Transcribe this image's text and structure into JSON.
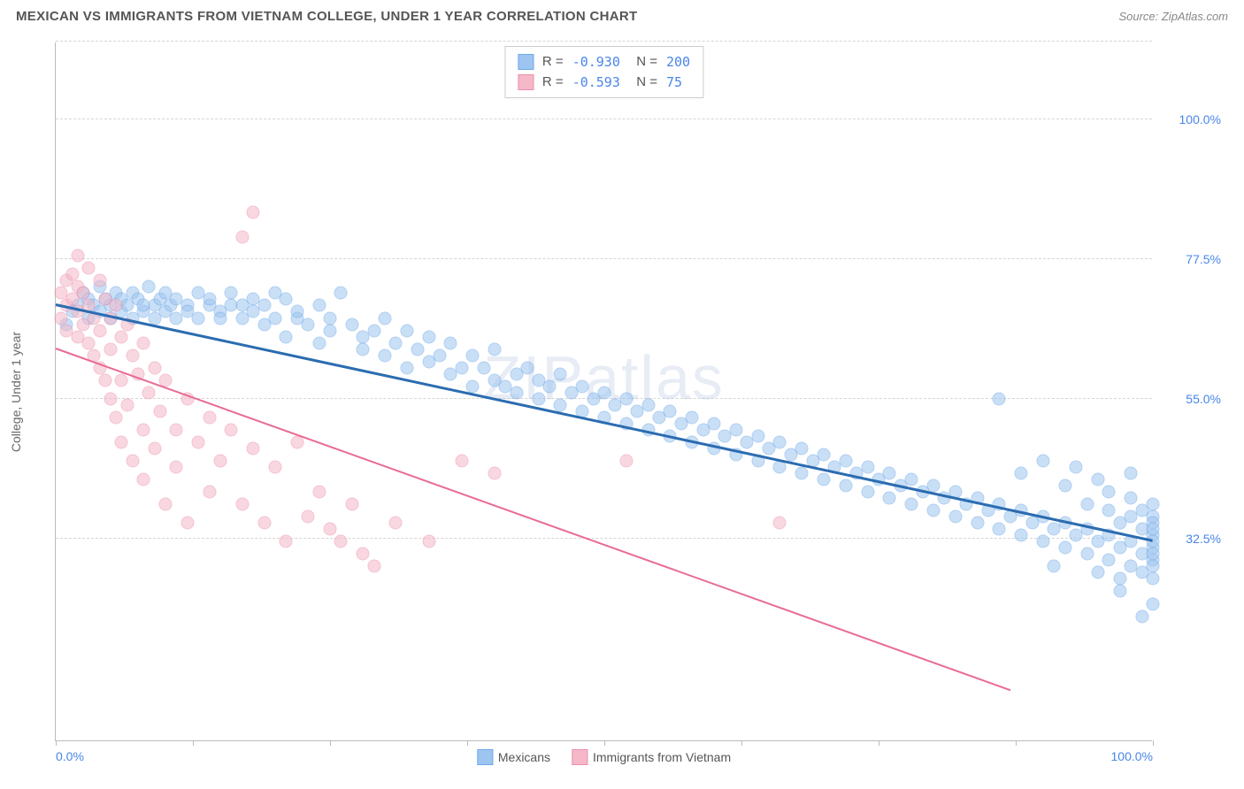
{
  "title": "MEXICAN VS IMMIGRANTS FROM VIETNAM COLLEGE, UNDER 1 YEAR CORRELATION CHART",
  "source": "Source: ZipAtlas.com",
  "watermark": "ZIPatlas",
  "y_axis_label": "College, Under 1 year",
  "chart": {
    "type": "scatter",
    "xlim": [
      0,
      100
    ],
    "ylim": [
      0,
      112.5
    ],
    "x_ticks": [
      0,
      12.5,
      25,
      37.5,
      50,
      62.5,
      75,
      87.5,
      100
    ],
    "x_tick_labels": {
      "0": "0.0%",
      "100": "100.0%"
    },
    "y_gridlines": [
      32.5,
      55,
      77.5,
      100,
      112.5
    ],
    "y_tick_labels": {
      "32.5": "32.5%",
      "55": "55.0%",
      "77.5": "77.5%",
      "100": "100.0%"
    },
    "background_color": "#ffffff",
    "grid_color": "#d5d5d5",
    "point_radius": 7.5,
    "point_opacity": 0.55,
    "series": [
      {
        "name": "Mexicans",
        "color": "#9ec5f0",
        "stroke": "#6fa8e8",
        "r_value": "-0.930",
        "n_value": "200",
        "trend": {
          "x1": 0,
          "y1": 70,
          "x2": 100,
          "y2": 32,
          "color": "#2b6cb0",
          "width": 2.5
        },
        "points": [
          [
            1,
            67
          ],
          [
            1.5,
            69
          ],
          [
            2,
            70
          ],
          [
            2.5,
            72
          ],
          [
            3,
            68
          ],
          [
            3,
            71
          ],
          [
            3.5,
            70
          ],
          [
            4,
            69
          ],
          [
            4,
            73
          ],
          [
            4.5,
            71
          ],
          [
            5,
            70
          ],
          [
            5,
            68
          ],
          [
            5.5,
            72
          ],
          [
            6,
            69
          ],
          [
            6,
            71
          ],
          [
            6.5,
            70
          ],
          [
            7,
            68
          ],
          [
            7,
            72
          ],
          [
            7.5,
            71
          ],
          [
            8,
            69
          ],
          [
            8,
            70
          ],
          [
            8.5,
            73
          ],
          [
            9,
            68
          ],
          [
            9,
            70
          ],
          [
            9.5,
            71
          ],
          [
            10,
            69
          ],
          [
            10,
            72
          ],
          [
            10.5,
            70
          ],
          [
            11,
            68
          ],
          [
            11,
            71
          ],
          [
            12,
            70
          ],
          [
            12,
            69
          ],
          [
            13,
            72
          ],
          [
            13,
            68
          ],
          [
            14,
            70
          ],
          [
            14,
            71
          ],
          [
            15,
            69
          ],
          [
            15,
            68
          ],
          [
            16,
            70
          ],
          [
            16,
            72
          ],
          [
            17,
            68
          ],
          [
            17,
            70
          ],
          [
            18,
            69
          ],
          [
            18,
            71
          ],
          [
            19,
            67
          ],
          [
            19,
            70
          ],
          [
            20,
            68
          ],
          [
            20,
            72
          ],
          [
            21,
            71
          ],
          [
            21,
            65
          ],
          [
            22,
            68
          ],
          [
            22,
            69
          ],
          [
            23,
            67
          ],
          [
            24,
            70
          ],
          [
            24,
            64
          ],
          [
            25,
            66
          ],
          [
            25,
            68
          ],
          [
            26,
            72
          ],
          [
            27,
            67
          ],
          [
            28,
            63
          ],
          [
            28,
            65
          ],
          [
            29,
            66
          ],
          [
            30,
            62
          ],
          [
            30,
            68
          ],
          [
            31,
            64
          ],
          [
            32,
            66
          ],
          [
            32,
            60
          ],
          [
            33,
            63
          ],
          [
            34,
            61
          ],
          [
            34,
            65
          ],
          [
            35,
            62
          ],
          [
            36,
            59
          ],
          [
            36,
            64
          ],
          [
            37,
            60
          ],
          [
            38,
            62
          ],
          [
            38,
            57
          ],
          [
            39,
            60
          ],
          [
            40,
            58
          ],
          [
            40,
            63
          ],
          [
            41,
            57
          ],
          [
            42,
            59
          ],
          [
            42,
            56
          ],
          [
            43,
            60
          ],
          [
            44,
            55
          ],
          [
            44,
            58
          ],
          [
            45,
            57
          ],
          [
            46,
            54
          ],
          [
            46,
            59
          ],
          [
            47,
            56
          ],
          [
            48,
            53
          ],
          [
            48,
            57
          ],
          [
            49,
            55
          ],
          [
            50,
            52
          ],
          [
            50,
            56
          ],
          [
            51,
            54
          ],
          [
            52,
            51
          ],
          [
            52,
            55
          ],
          [
            53,
            53
          ],
          [
            54,
            50
          ],
          [
            54,
            54
          ],
          [
            55,
            52
          ],
          [
            56,
            49
          ],
          [
            56,
            53
          ],
          [
            57,
            51
          ],
          [
            58,
            48
          ],
          [
            58,
            52
          ],
          [
            59,
            50
          ],
          [
            60,
            47
          ],
          [
            60,
            51
          ],
          [
            61,
            49
          ],
          [
            62,
            46
          ],
          [
            62,
            50
          ],
          [
            63,
            48
          ],
          [
            64,
            45
          ],
          [
            64,
            49
          ],
          [
            65,
            47
          ],
          [
            66,
            44
          ],
          [
            66,
            48
          ],
          [
            67,
            46
          ],
          [
            68,
            43
          ],
          [
            68,
            47
          ],
          [
            69,
            45
          ],
          [
            70,
            42
          ],
          [
            70,
            46
          ],
          [
            71,
            44
          ],
          [
            72,
            41
          ],
          [
            72,
            45
          ],
          [
            73,
            43
          ],
          [
            74,
            40
          ],
          [
            74,
            44
          ],
          [
            75,
            42
          ],
          [
            76,
            39
          ],
          [
            76,
            43
          ],
          [
            77,
            41
          ],
          [
            78,
            38
          ],
          [
            78,
            42
          ],
          [
            79,
            40
          ],
          [
            80,
            37
          ],
          [
            80,
            41
          ],
          [
            81,
            39
          ],
          [
            82,
            36
          ],
          [
            82,
            40
          ],
          [
            83,
            38
          ],
          [
            84,
            35
          ],
          [
            84,
            39
          ],
          [
            85,
            37
          ],
          [
            86,
            34
          ],
          [
            86,
            38
          ],
          [
            86,
            55
          ],
          [
            87,
            36
          ],
          [
            88,
            33
          ],
          [
            88,
            37
          ],
          [
            88,
            43
          ],
          [
            89,
            35
          ],
          [
            90,
            32
          ],
          [
            90,
            36
          ],
          [
            90,
            45
          ],
          [
            91,
            34
          ],
          [
            91,
            28
          ],
          [
            92,
            31
          ],
          [
            92,
            35
          ],
          [
            92,
            41
          ],
          [
            93,
            33
          ],
          [
            93,
            44
          ],
          [
            94,
            30
          ],
          [
            94,
            34
          ],
          [
            94,
            38
          ],
          [
            95,
            32
          ],
          [
            95,
            42
          ],
          [
            95,
            27
          ],
          [
            96,
            29
          ],
          [
            96,
            33
          ],
          [
            96,
            37
          ],
          [
            96,
            40
          ],
          [
            97,
            31
          ],
          [
            97,
            35
          ],
          [
            97,
            26
          ],
          [
            97,
            24
          ],
          [
            98,
            28
          ],
          [
            98,
            32
          ],
          [
            98,
            36
          ],
          [
            98,
            39
          ],
          [
            98,
            43
          ],
          [
            99,
            30
          ],
          [
            99,
            34
          ],
          [
            99,
            27
          ],
          [
            99,
            37
          ],
          [
            99,
            20
          ],
          [
            100,
            29
          ],
          [
            100,
            33
          ],
          [
            100,
            36
          ],
          [
            100,
            31
          ],
          [
            100,
            26
          ],
          [
            100,
            38
          ],
          [
            100,
            35
          ],
          [
            100,
            28
          ],
          [
            100,
            32
          ],
          [
            100,
            30
          ],
          [
            100,
            34
          ],
          [
            100,
            22
          ]
        ]
      },
      {
        "name": "Immigrants from Vietnam",
        "color": "#f5b8c8",
        "stroke": "#ec8fab",
        "r_value": "-0.593",
        "n_value": "75",
        "trend": {
          "x1": 0,
          "y1": 63,
          "x2": 87,
          "y2": 8,
          "color": "#e86b93",
          "width": 2
        },
        "points": [
          [
            0.5,
            72
          ],
          [
            0.5,
            68
          ],
          [
            1,
            70
          ],
          [
            1,
            74
          ],
          [
            1,
            66
          ],
          [
            1.5,
            71
          ],
          [
            1.5,
            75
          ],
          [
            2,
            69
          ],
          [
            2,
            73
          ],
          [
            2,
            65
          ],
          [
            2,
            78
          ],
          [
            2.5,
            72
          ],
          [
            2.5,
            67
          ],
          [
            3,
            70
          ],
          [
            3,
            64
          ],
          [
            3,
            76
          ],
          [
            3.5,
            68
          ],
          [
            3.5,
            62
          ],
          [
            4,
            74
          ],
          [
            4,
            66
          ],
          [
            4,
            60
          ],
          [
            4.5,
            71
          ],
          [
            4.5,
            58
          ],
          [
            5,
            68
          ],
          [
            5,
            63
          ],
          [
            5,
            55
          ],
          [
            5.5,
            70
          ],
          [
            5.5,
            52
          ],
          [
            6,
            65
          ],
          [
            6,
            58
          ],
          [
            6,
            48
          ],
          [
            6.5,
            67
          ],
          [
            6.5,
            54
          ],
          [
            7,
            62
          ],
          [
            7,
            45
          ],
          [
            7.5,
            59
          ],
          [
            8,
            64
          ],
          [
            8,
            50
          ],
          [
            8,
            42
          ],
          [
            8.5,
            56
          ],
          [
            9,
            60
          ],
          [
            9,
            47
          ],
          [
            9.5,
            53
          ],
          [
            10,
            58
          ],
          [
            10,
            38
          ],
          [
            11,
            50
          ],
          [
            11,
            44
          ],
          [
            12,
            55
          ],
          [
            12,
            35
          ],
          [
            13,
            48
          ],
          [
            14,
            52
          ],
          [
            14,
            40
          ],
          [
            15,
            45
          ],
          [
            16,
            50
          ],
          [
            17,
            38
          ],
          [
            17,
            81
          ],
          [
            18,
            47
          ],
          [
            18,
            85
          ],
          [
            19,
            35
          ],
          [
            20,
            44
          ],
          [
            21,
            32
          ],
          [
            22,
            48
          ],
          [
            23,
            36
          ],
          [
            24,
            40
          ],
          [
            25,
            34
          ],
          [
            26,
            32
          ],
          [
            27,
            38
          ],
          [
            28,
            30
          ],
          [
            29,
            28
          ],
          [
            31,
            35
          ],
          [
            34,
            32
          ],
          [
            37,
            45
          ],
          [
            40,
            43
          ],
          [
            52,
            45
          ],
          [
            66,
            35
          ]
        ]
      }
    ]
  },
  "legend": {
    "items": [
      {
        "label": "Mexicans",
        "swatch": "#9ec5f0",
        "border": "#6fa8e8"
      },
      {
        "label": "Immigrants from Vietnam",
        "swatch": "#f5b8c8",
        "border": "#ec8fab"
      }
    ]
  }
}
